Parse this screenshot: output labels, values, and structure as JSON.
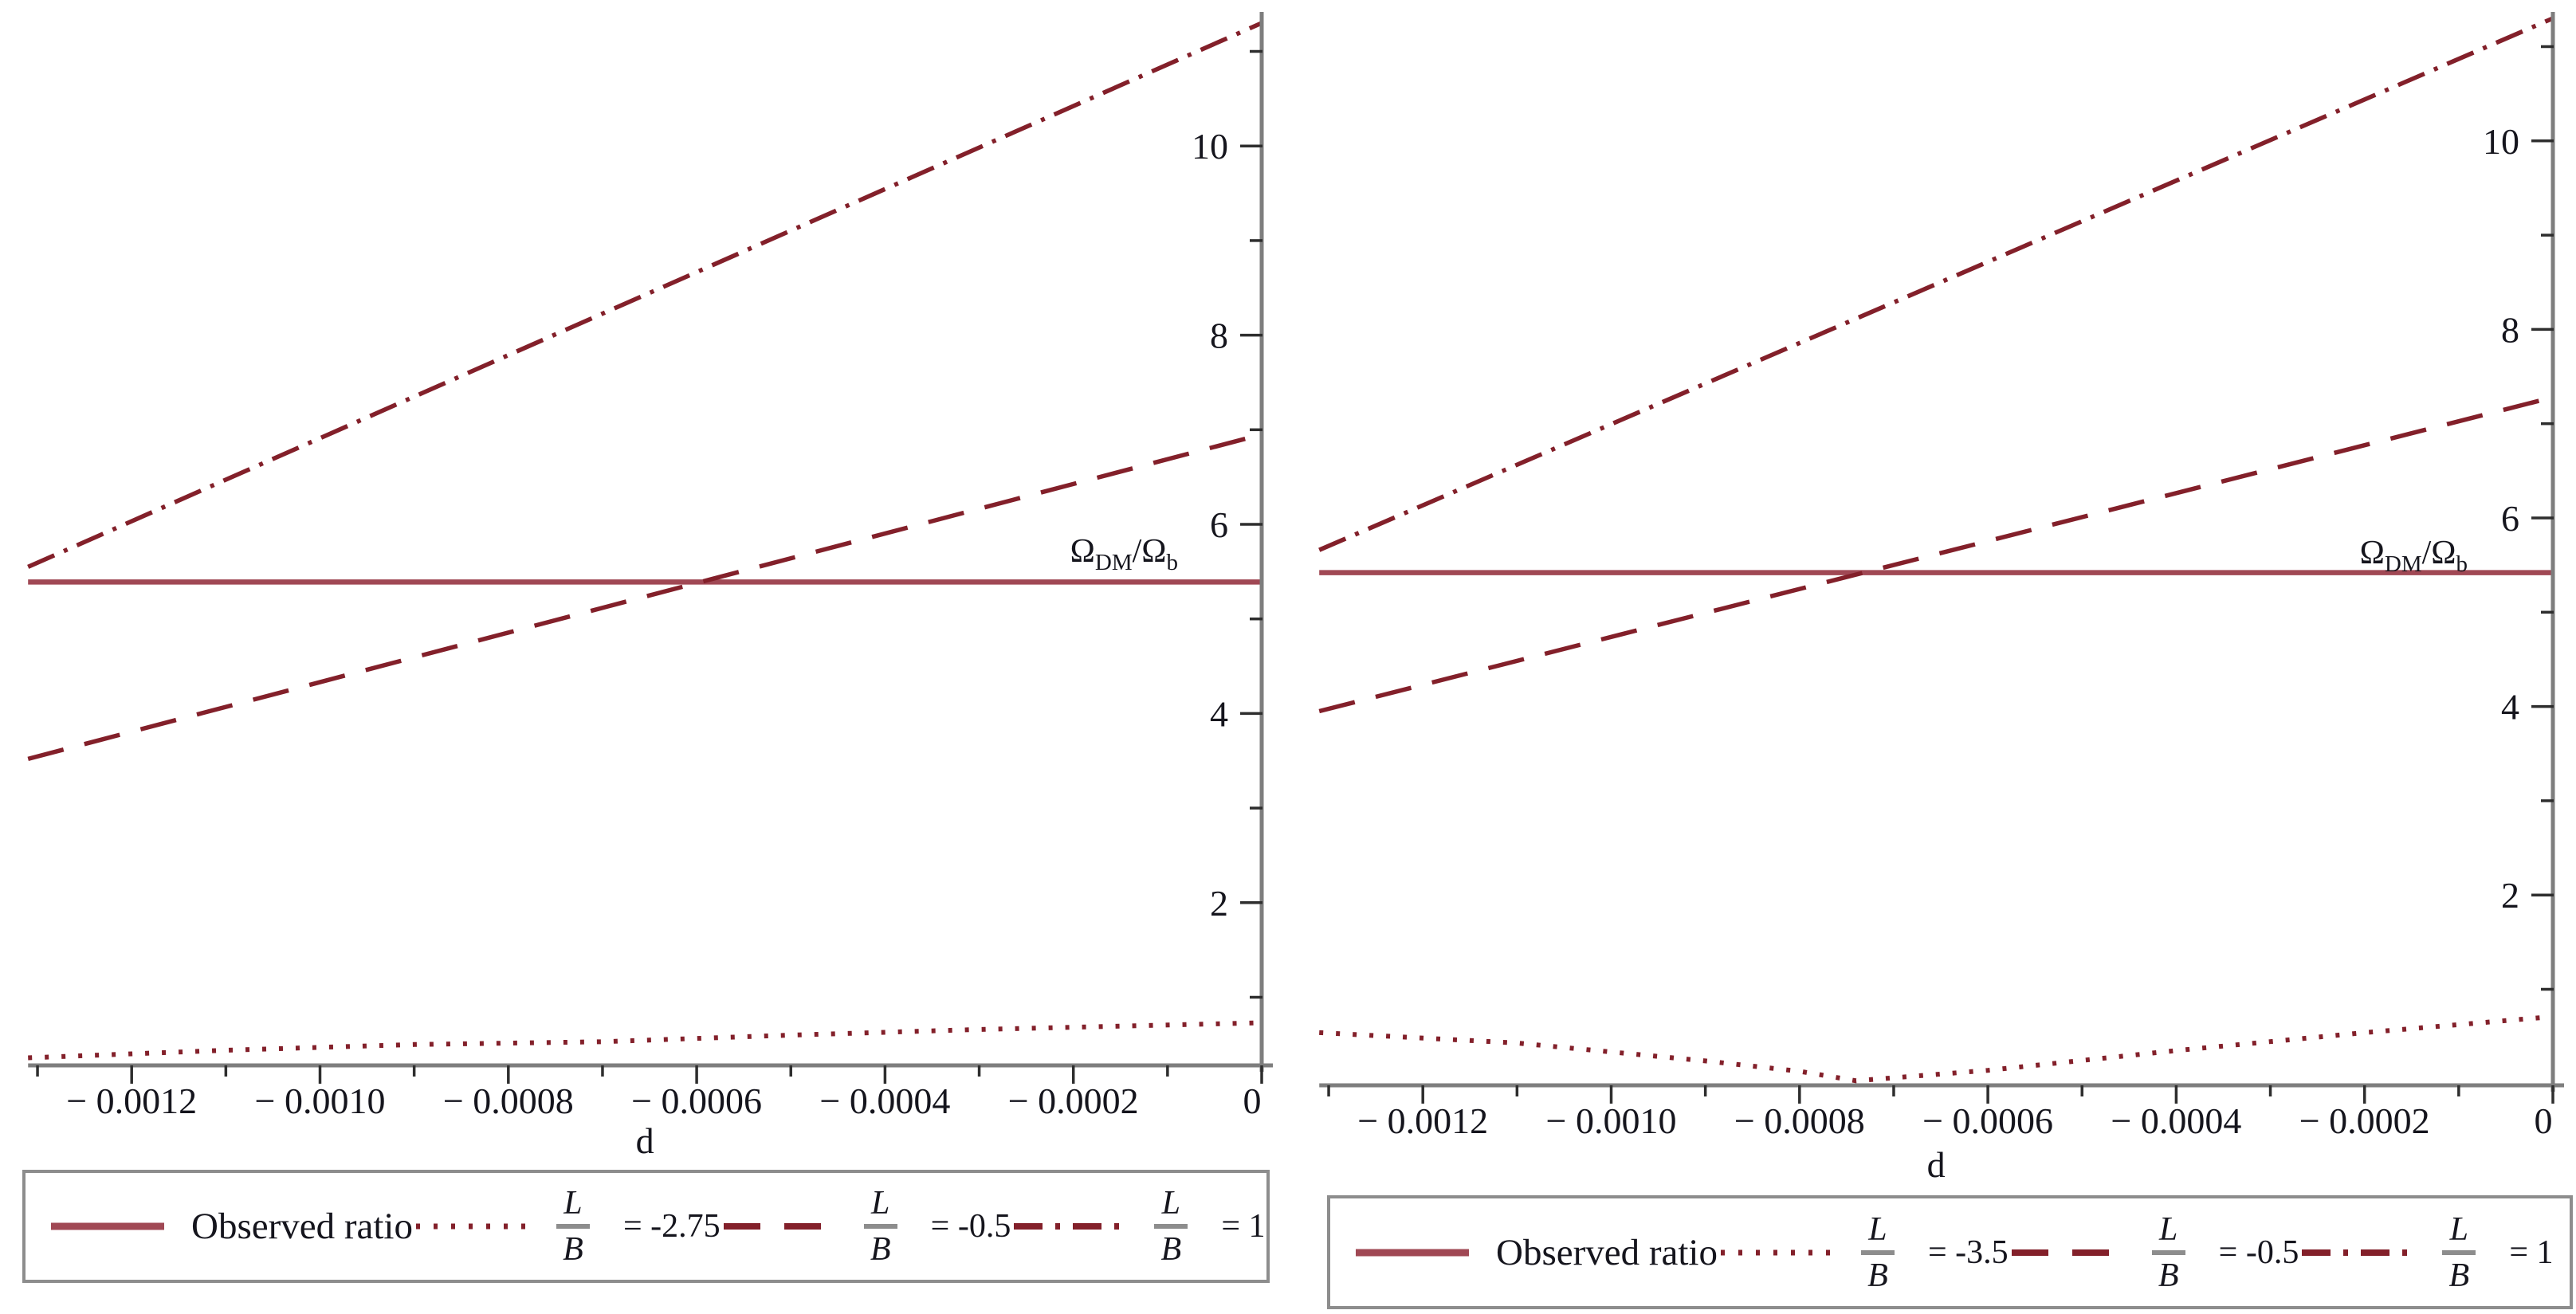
{
  "meta": {
    "curve_color": "#83202a",
    "solid_color": "#a04854",
    "axis_color": "#7e7e7e",
    "text_color": "#15151d",
    "fraction_bar_color": "#8d8d8d",
    "background": "#ffffff"
  },
  "chart_data": [
    {
      "id": "left",
      "type": "line",
      "xlabel": "d",
      "ylabel": "Ω_DM/Ω_b",
      "ylabel_parts": {
        "p1": "Ω",
        "sub1": "DM",
        "p2": "/",
        "p3": "Ω",
        "sub2": "b"
      },
      "xlim": [
        -0.00131,
        0
      ],
      "ylim": [
        0.28,
        11.4
      ],
      "grid": false,
      "legend_position": "bottom",
      "x_major_ticks": [
        -0.0012,
        -0.001,
        -0.0008,
        -0.0006,
        -0.0004,
        -0.0002,
        0
      ],
      "x_tick_labels": [
        "− 0.0012",
        "− 0.0010",
        "− 0.0008",
        "− 0.0006",
        "− 0.0004",
        "− 0.0002",
        "0"
      ],
      "x_minor_ticks": [
        -0.0013,
        -0.0011,
        -0.0009,
        -0.0007,
        -0.0005,
        -0.0003,
        -0.0001
      ],
      "y_major_ticks": [
        2,
        4,
        6,
        8,
        10
      ],
      "y_tick_labels": [
        "2",
        "4",
        "6",
        "8",
        "10"
      ],
      "y_minor_ticks": [
        1,
        3,
        5,
        7,
        9,
        11
      ],
      "series": [
        {
          "name": "Observed ratio",
          "style": "solid",
          "points": [
            [
              -0.00131,
              5.39
            ],
            [
              0,
              5.39
            ]
          ]
        },
        {
          "name": "L/B = -2.75",
          "style": "dotted",
          "points": [
            [
              -0.00131,
              0.36
            ],
            [
              -0.0011,
              0.44
            ],
            [
              -0.0009,
              0.5
            ],
            [
              -0.0007,
              0.53
            ],
            [
              -0.0005,
              0.6
            ],
            [
              -0.0003,
              0.66
            ],
            [
              0,
              0.73
            ]
          ]
        },
        {
          "name": "L/B = -0.5",
          "style": "dashed",
          "points": [
            [
              -0.00131,
              3.52
            ],
            [
              0,
              6.95
            ]
          ]
        },
        {
          "name": "L/B = 1",
          "style": "dashdot",
          "points": [
            [
              -0.00131,
              5.55
            ],
            [
              0,
              11.3
            ]
          ]
        }
      ],
      "legend": [
        {
          "style": "solid",
          "label": "Observed ratio"
        },
        {
          "style": "dotted",
          "fraction": {
            "num": "L",
            "den": "B"
          },
          "value_label": "= -2.75"
        },
        {
          "style": "dashed",
          "fraction": {
            "num": "L",
            "den": "B"
          },
          "value_label": "= -0.5"
        },
        {
          "style": "dashdot",
          "fraction": {
            "num": "L",
            "den": "B"
          },
          "value_label": "= 1"
        }
      ]
    },
    {
      "id": "right",
      "type": "line",
      "xlabel": "d",
      "ylabel": "Ω_DM/Ω_b",
      "ylabel_parts": {
        "p1": "Ω",
        "sub1": "DM",
        "p2": "/",
        "p3": "Ω",
        "sub2": "b"
      },
      "xlim": [
        -0.00131,
        0
      ],
      "ylim": [
        -0.02,
        11.4
      ],
      "grid": false,
      "legend_position": "bottom",
      "x_major_ticks": [
        -0.0012,
        -0.001,
        -0.0008,
        -0.0006,
        -0.0004,
        -0.0002,
        0
      ],
      "x_tick_labels": [
        "− 0.0012",
        "− 0.0010",
        "− 0.0008",
        "− 0.0006",
        "− 0.0004",
        "− 0.0002",
        "0"
      ],
      "x_minor_ticks": [
        -0.0013,
        -0.0011,
        -0.0009,
        -0.0007,
        -0.0005,
        -0.0003,
        -0.0001
      ],
      "y_major_ticks": [
        2,
        4,
        6,
        8,
        10
      ],
      "y_tick_labels": [
        "2",
        "4",
        "6",
        "8",
        "10"
      ],
      "y_minor_ticks": [
        1,
        3,
        5,
        7,
        9,
        11
      ],
      "series": [
        {
          "name": "Observed ratio",
          "style": "solid",
          "points": [
            [
              -0.00131,
              5.42
            ],
            [
              0,
              5.42
            ]
          ]
        },
        {
          "name": "L/B = -3.5",
          "style": "dotted",
          "points": [
            [
              -0.00131,
              0.54
            ],
            [
              -0.0011,
              0.43
            ],
            [
              -0.0009,
              0.24
            ],
            [
              -0.0008,
              0.13
            ],
            [
              -0.00074,
              0.03
            ],
            [
              -0.0006,
              0.14
            ],
            [
              -0.0004,
              0.35
            ],
            [
              -0.0002,
              0.54
            ],
            [
              0,
              0.71
            ]
          ]
        },
        {
          "name": "L/B = -0.5",
          "style": "dashed",
          "points": [
            [
              -0.00131,
              3.95
            ],
            [
              0,
              7.28
            ]
          ]
        },
        {
          "name": "L/B = 1",
          "style": "dashdot",
          "points": [
            [
              -0.00131,
              5.66
            ],
            [
              0,
              11.3
            ]
          ]
        }
      ],
      "legend": [
        {
          "style": "solid",
          "label": "Observed ratio"
        },
        {
          "style": "dotted",
          "fraction": {
            "num": "L",
            "den": "B"
          },
          "value_label": "= -3.5"
        },
        {
          "style": "dashed",
          "fraction": {
            "num": "L",
            "den": "B"
          },
          "value_label": "= -0.5"
        },
        {
          "style": "dashdot",
          "fraction": {
            "num": "L",
            "den": "B"
          },
          "value_label": "= 1"
        }
      ]
    }
  ]
}
